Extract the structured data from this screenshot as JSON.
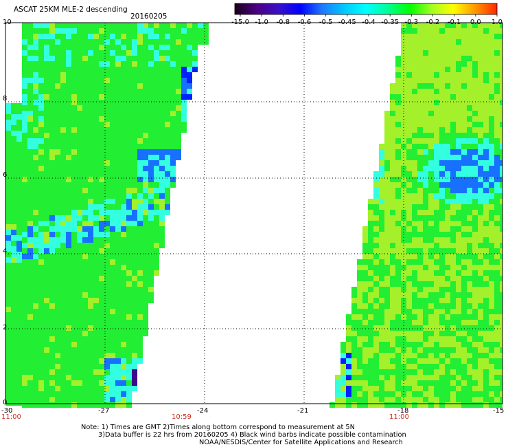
{
  "header": {
    "title": "ASCAT 25KM MLE-2 descending",
    "date": "20160205"
  },
  "colorbar": {
    "labels": [
      "-15.0",
      "-1.0",
      "-0.8",
      "-0.6",
      "-0.5",
      "-0.45",
      "-0.4",
      "-0.35",
      "-0.3",
      "-0.2",
      "-0.1",
      "0.0",
      "1.0"
    ],
    "colors": [
      "#1a001a",
      "#4b0082",
      "#3a10c8",
      "#0000ff",
      "#1e78ff",
      "#00c8ff",
      "#00ffff",
      "#00ff96",
      "#00ff00",
      "#a0ff20",
      "#ffff00",
      "#ff9600",
      "#ff2800"
    ]
  },
  "axes": {
    "y_ticks": [
      "10",
      "8",
      "6",
      "4",
      "2",
      "0"
    ],
    "x_ticks": [
      "-30",
      "-27",
      "-24",
      "-21",
      "-18",
      "-15"
    ]
  },
  "times": {
    "left": "11:00",
    "mid_left": "10:59",
    "right": "11:00"
  },
  "notes": {
    "line1": "Note: 1) Times are GMT 2)Times along bottom correspond to measurement at 5N",
    "line2": "3)Data buffer is 22 hrs from 20160205 4) Black wind barbs indicate possible contamination",
    "line3": "NOAA/NESDIS/Center for Satellite Applications and Research"
  },
  "swath_colors": {
    "green": "#22ee33",
    "lime": "#a4f02a",
    "cyan": "#33ffe0",
    "blue": "#1870ff",
    "deep_blue": "#0020ff",
    "purple": "#3c0a8c"
  }
}
